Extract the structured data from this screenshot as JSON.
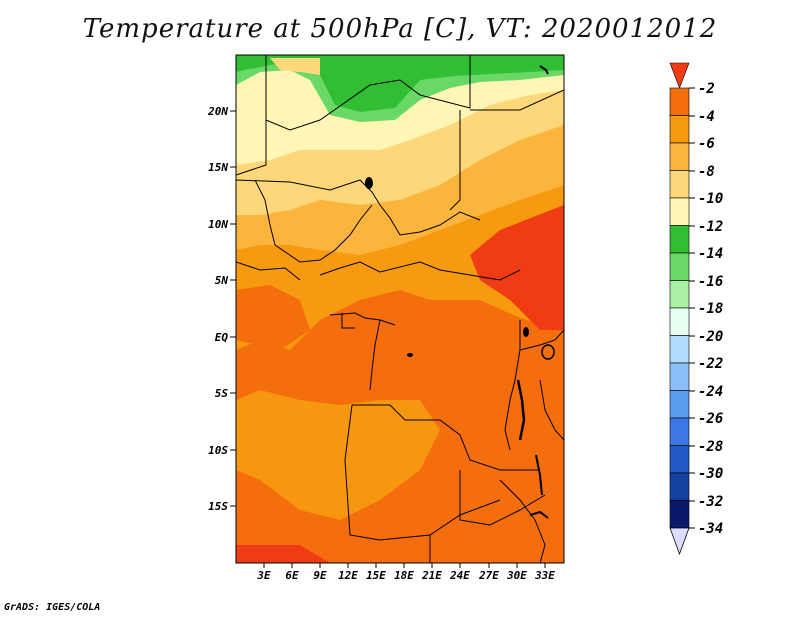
{
  "title": "Temperature at 500hPa [C], VT: 2020012012",
  "footer": "GrADS: IGES/COLA",
  "map": {
    "lat_labels": [
      "20N",
      "15N",
      "10N",
      "5N",
      "EQ",
      "5S",
      "10S",
      "15S"
    ],
    "lon_labels": [
      "3E",
      "6E",
      "9E",
      "12E",
      "15E",
      "18E",
      "21E",
      "24E",
      "27E",
      "30E",
      "33E"
    ]
  },
  "colorbar": {
    "labels": [
      "-2",
      "-4",
      "-6",
      "-8",
      "-10",
      "-12",
      "-14",
      "-16",
      "-18",
      "-20",
      "-22",
      "-24",
      "-26",
      "-28",
      "-30",
      "-32",
      "-34"
    ],
    "colors": [
      "#f03c14",
      "#f46e0e",
      "#f79a10",
      "#fbb43c",
      "#fdd77a",
      "#fff5b4",
      "#32be32",
      "#6ad866",
      "#aaf0a4",
      "#e6fff0",
      "#b4dcff",
      "#8cbef8",
      "#5a9ef2",
      "#3c78e6",
      "#2258c8",
      "#1440a0",
      "#0a1a6a"
    ],
    "top_color": "#f03c14",
    "bottom_color": "#dcdcff"
  },
  "colors": {
    "warm_south": "#f46e0e",
    "hot_east": "#f03c14",
    "mid": "#f79a10",
    "cool": "#fbb43c",
    "cooler": "#fdd77a",
    "pale": "#fff5b4",
    "green": "#32be32",
    "light_green": "#6ad866"
  }
}
